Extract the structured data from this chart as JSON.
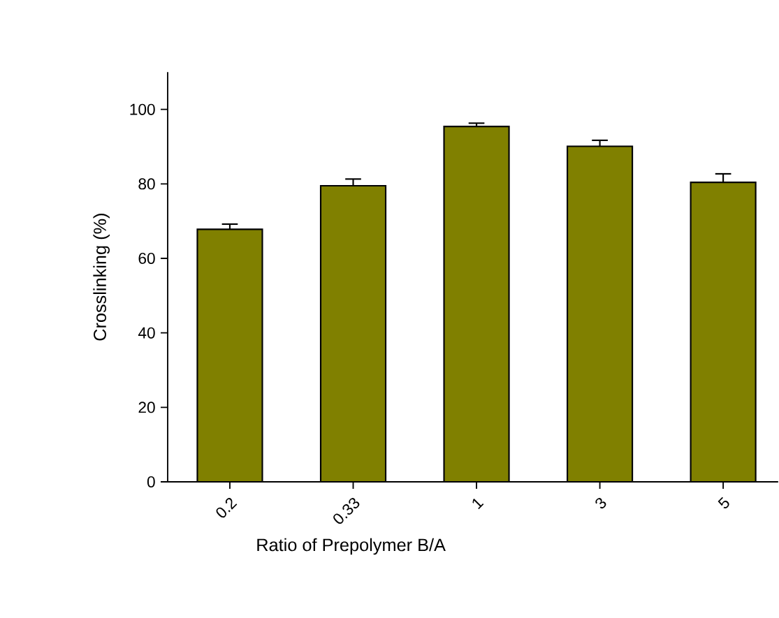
{
  "chart_data": {
    "type": "bar",
    "xlabel": "Ratio of Prepolymer B/A",
    "ylabel": "Crosslinking (%)",
    "categories": [
      "0.2",
      "0.33",
      "1",
      "3",
      "5"
    ],
    "values": [
      67.8,
      79.5,
      95.4,
      90.1,
      80.4
    ],
    "errors": [
      1.4,
      1.8,
      0.9,
      1.6,
      2.3
    ],
    "color": "#808000",
    "ylim": [
      0,
      110
    ],
    "yticks": [
      0,
      20,
      40,
      60,
      80,
      100
    ],
    "grid": false
  }
}
